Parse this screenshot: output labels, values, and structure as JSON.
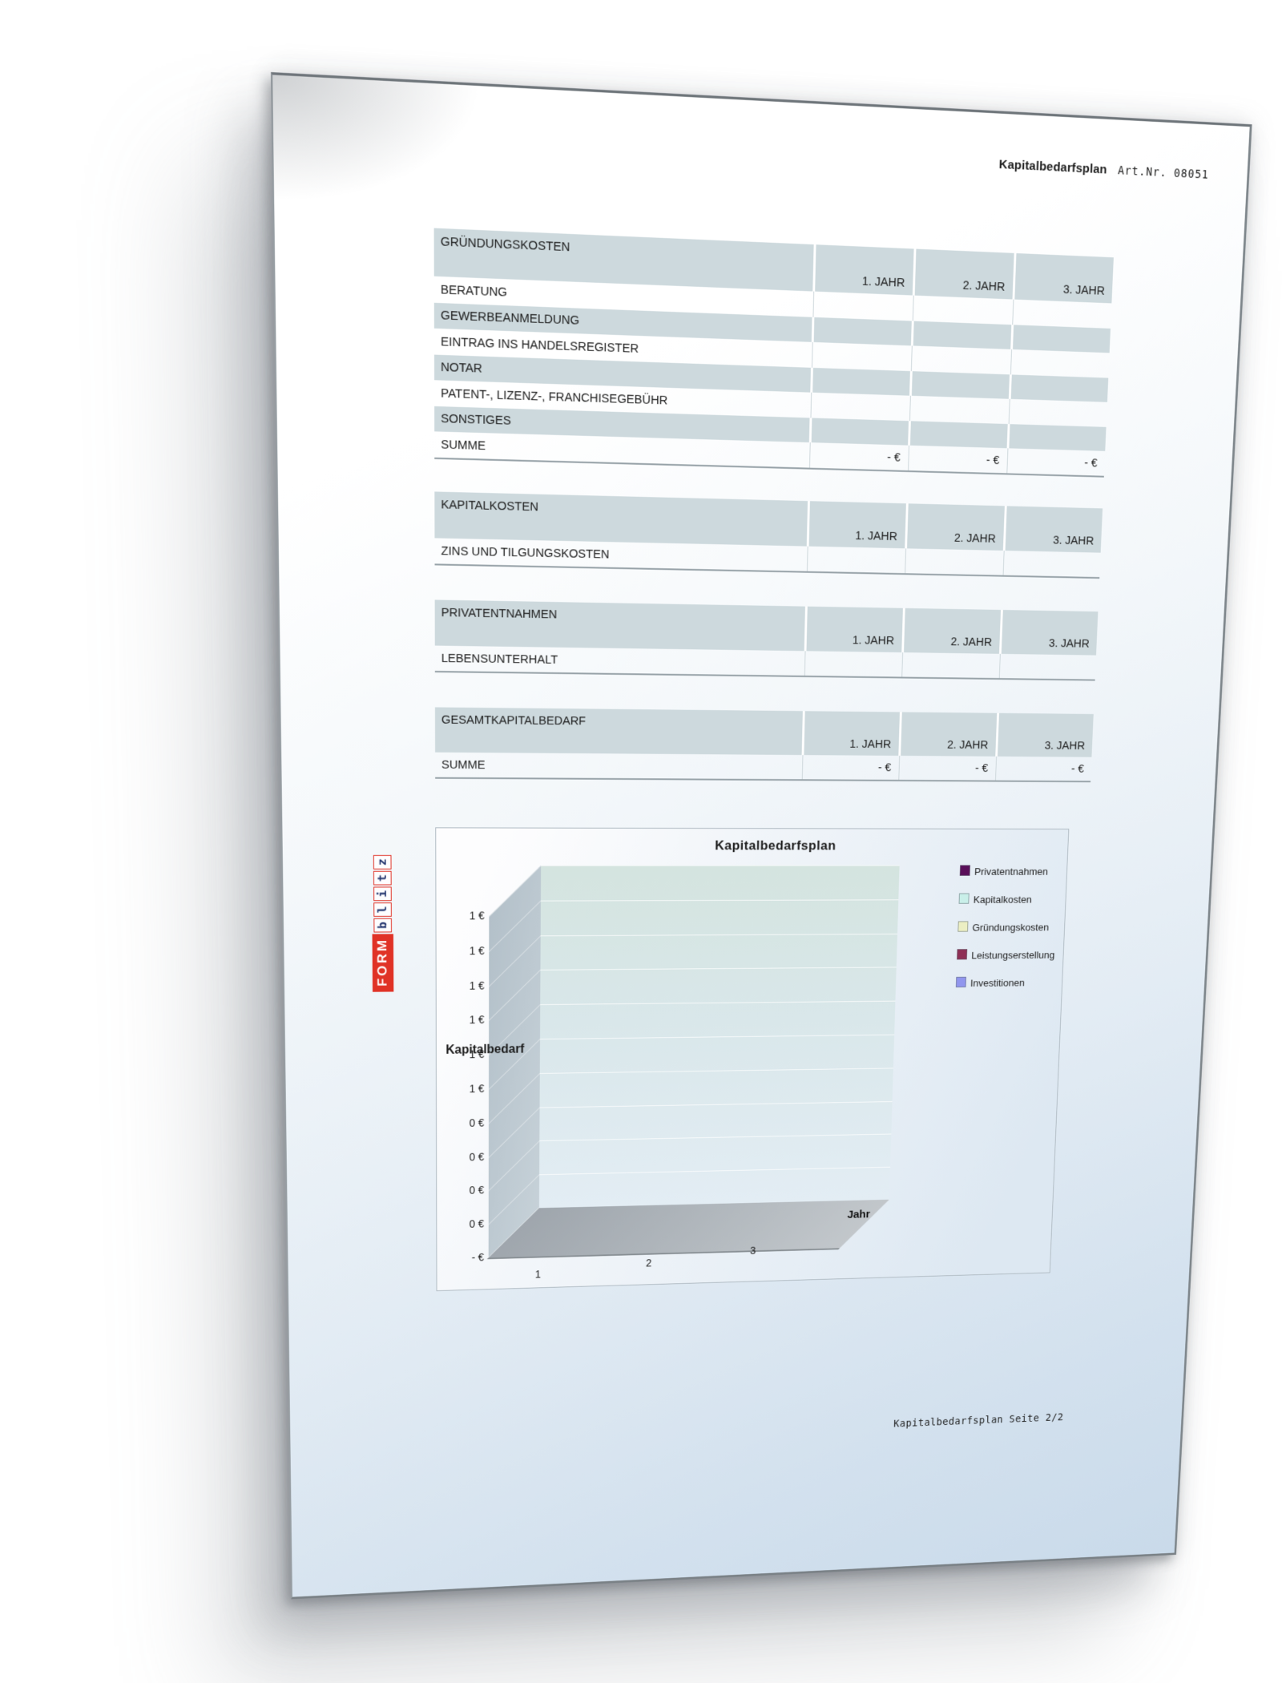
{
  "header": {
    "title": "Kapitalbedarfsplan",
    "art_nr": "Art.Nr. 08051"
  },
  "tables": [
    {
      "title": "GRÜNDUNGSKOSTEN",
      "columns": [
        "1. JAHR",
        "2. JAHR",
        "3. JAHR"
      ],
      "rows": [
        {
          "label": "BERATUNG",
          "values": [
            "",
            "",
            ""
          ]
        },
        {
          "label": "GEWERBEANMELDUNG",
          "values": [
            "",
            "",
            ""
          ]
        },
        {
          "label": "EINTRAG INS HANDELSREGISTER",
          "values": [
            "",
            "",
            ""
          ]
        },
        {
          "label": "NOTAR",
          "values": [
            "",
            "",
            ""
          ]
        },
        {
          "label": "PATENT-, LIZENZ-, FRANCHISEGEBÜHR",
          "values": [
            "",
            "",
            ""
          ]
        },
        {
          "label": "SONSTIGES",
          "values": [
            "",
            "",
            ""
          ]
        },
        {
          "label": "SUMME",
          "values": [
            "- €",
            "- €",
            "- €"
          ]
        }
      ]
    },
    {
      "title": "KAPITALKOSTEN",
      "columns": [
        "1. JAHR",
        "2. JAHR",
        "3. JAHR"
      ],
      "rows": [
        {
          "label": "ZINS UND TILGUNGSKOSTEN",
          "values": [
            "",
            "",
            ""
          ]
        }
      ]
    },
    {
      "title": "PRIVATENTNAHMEN",
      "columns": [
        "1. JAHR",
        "2. JAHR",
        "3. JAHR"
      ],
      "rows": [
        {
          "label": "LEBENSUNTERHALT",
          "values": [
            "",
            "",
            ""
          ]
        }
      ]
    },
    {
      "title": "GESAMTKAPITALBEDARF",
      "columns": [
        "1. JAHR",
        "2. JAHR",
        "3. JAHR"
      ],
      "rows": [
        {
          "label": "SUMME",
          "values": [
            "- €",
            "- €",
            "- €"
          ]
        }
      ]
    }
  ],
  "chart_data": {
    "type": "area",
    "projection": "3d",
    "title": "Kapitalbedarfsplan",
    "xlabel": "Jahr",
    "ylabel": "Kapitalbedarf",
    "categories": [
      "1",
      "2",
      "3"
    ],
    "series": [
      {
        "name": "Privatentnahmen",
        "color": "#5a0f5a",
        "values": [
          0,
          0,
          0
        ]
      },
      {
        "name": "Kapitalkosten",
        "color": "#c9efe9",
        "values": [
          0,
          0,
          0
        ]
      },
      {
        "name": "Gründungskosten",
        "color": "#ecefc3",
        "values": [
          0,
          0,
          0
        ]
      },
      {
        "name": "Leistungserstellung",
        "color": "#8e2f55",
        "values": [
          0,
          0,
          0
        ]
      },
      {
        "name": "Investitionen",
        "color": "#9196ee",
        "values": [
          0,
          0,
          0
        ]
      }
    ],
    "y_tick_labels": [
      "1 €",
      "1 €",
      "1 €",
      "1 €",
      "1 €",
      "1 €",
      "0 €",
      "0 €",
      "0 €",
      "0 €",
      "- €"
    ],
    "legend_position": "right",
    "grid": true
  },
  "logo": {
    "line1": "FORM",
    "line2": "blitz"
  },
  "footer": {
    "text": "Kapitalbedarfsplan Seite 2/2"
  }
}
